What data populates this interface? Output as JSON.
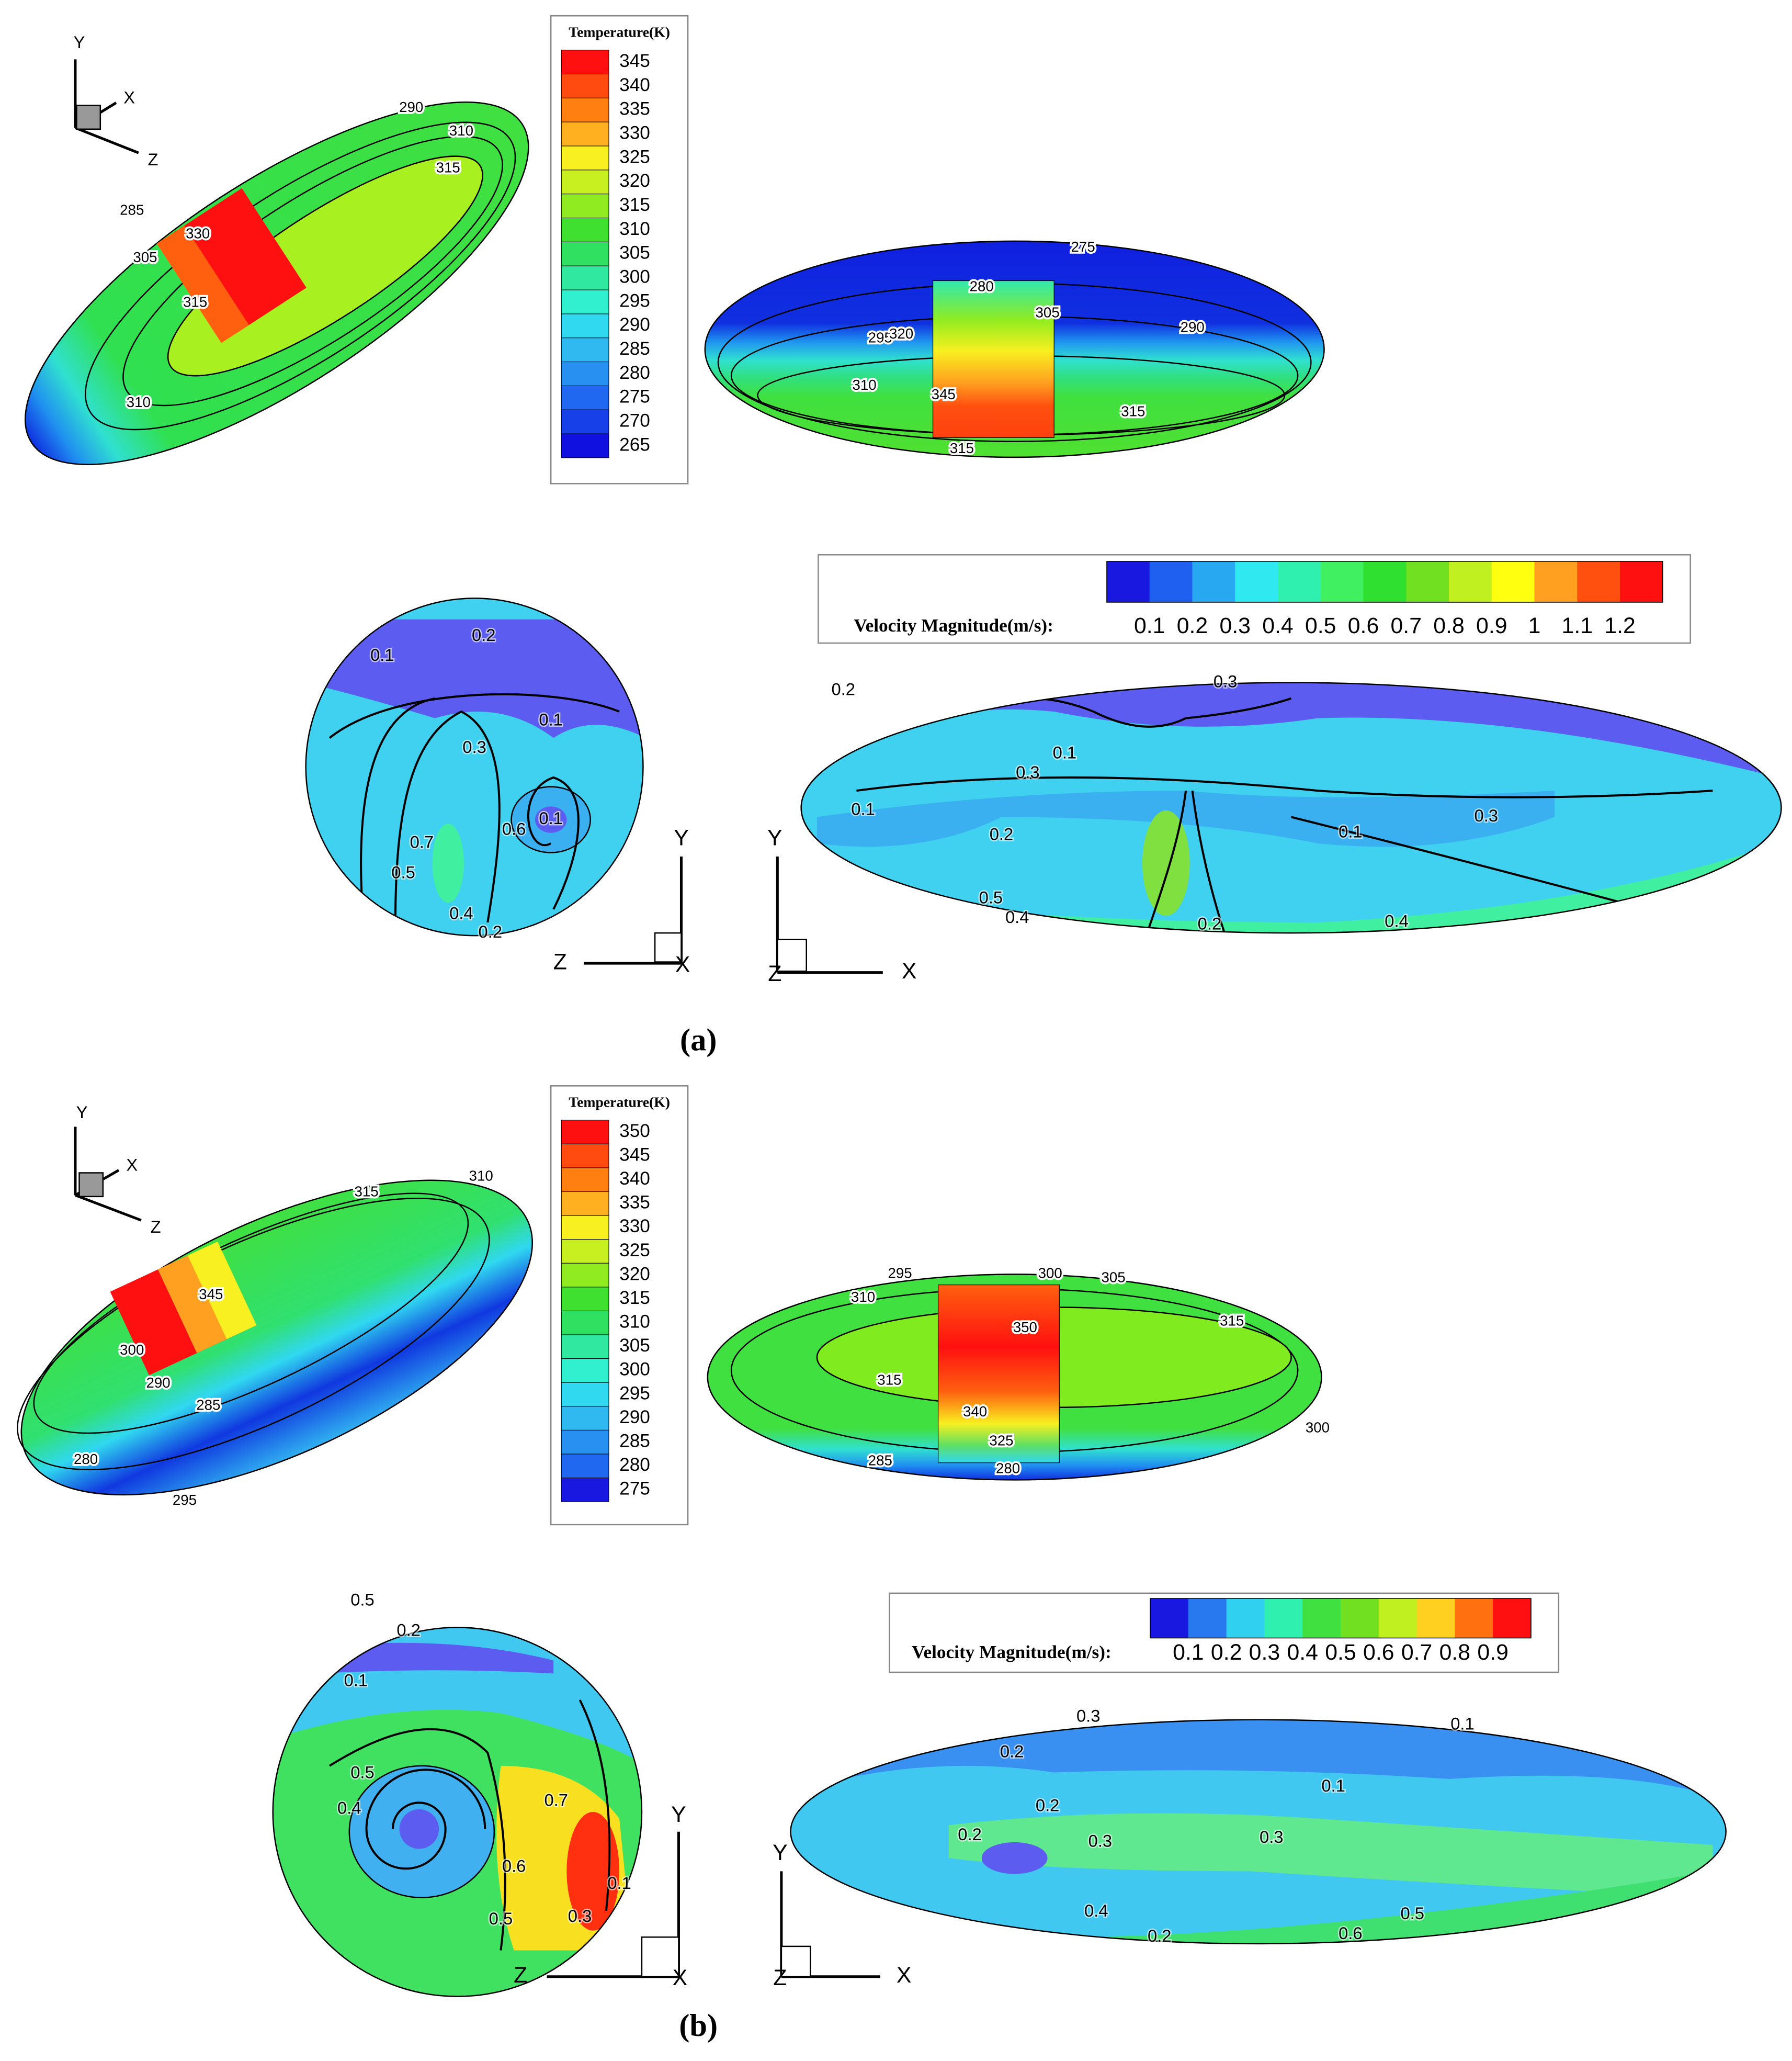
{
  "panels": [
    {
      "caption": "(a)",
      "temperature_legend": {
        "title": "Temperature(K)",
        "levels": [
          345,
          340,
          335,
          330,
          325,
          320,
          315,
          310,
          305,
          300,
          295,
          290,
          285,
          280,
          275,
          270,
          265
        ],
        "colors": [
          "#ff1010",
          "#ff4a10",
          "#ff8010",
          "#ffb020",
          "#f8f020",
          "#c8f020",
          "#90ec20",
          "#40e030",
          "#30e060",
          "#30e8a0",
          "#30f0d0",
          "#30d8f0",
          "#30b8f0",
          "#2890f0",
          "#2068f0",
          "#1840e8",
          "#1010e0"
        ]
      },
      "velocity_legend": {
        "title": "Velocity Magnitude(m/s):",
        "levels": [
          0.1,
          0.2,
          0.3,
          0.4,
          0.5,
          0.6,
          0.7,
          0.8,
          0.9,
          1,
          1.1,
          1.2
        ],
        "colors": [
          "#1818e0",
          "#2060f0",
          "#28a8f0",
          "#30e8f0",
          "#30f0b0",
          "#40f060",
          "#30e030",
          "#70e020",
          "#c0f020",
          "#ffff10",
          "#ffa020",
          "#ff5010",
          "#ff1010"
        ]
      },
      "axes": [
        {
          "labels": [
            "Y",
            "X",
            "Z"
          ]
        },
        {
          "labels": [
            "Y",
            "Z",
            "X"
          ]
        },
        {
          "labels": [
            "Y",
            "Z",
            "X"
          ]
        }
      ],
      "contour_labels": {
        "iso_view": [
          290,
          310,
          315,
          285,
          330,
          305,
          315,
          310
        ],
        "side_view": [
          275,
          280,
          305,
          295,
          320,
          290,
          310,
          345,
          315,
          315
        ],
        "cross_section": [
          0.2,
          0.1,
          0.1,
          0.3,
          0.6,
          0.1,
          0.7,
          0.5,
          0.4,
          0.2
        ],
        "longitudinal": [
          0.2,
          0.3,
          0.1,
          0.1,
          0.3,
          0.1,
          0.2,
          0.3,
          0.5,
          0.4,
          0.2,
          0.4
        ]
      }
    },
    {
      "caption": "(b)",
      "temperature_legend": {
        "title": "Temperature(K)",
        "levels": [
          350,
          345,
          340,
          335,
          330,
          325,
          320,
          315,
          310,
          305,
          300,
          295,
          290,
          285,
          280,
          275
        ],
        "colors": [
          "#ff1010",
          "#ff4a10",
          "#ff8010",
          "#ffb020",
          "#f8f020",
          "#c8f020",
          "#90ec20",
          "#40e030",
          "#30e060",
          "#30e8a0",
          "#30f0d0",
          "#30d8f0",
          "#30b8f0",
          "#2890f0",
          "#2068f0",
          "#1818e0"
        ]
      },
      "velocity_legend": {
        "title": "Velocity Magnitude(m/s):",
        "levels": [
          0.1,
          0.2,
          0.3,
          0.4,
          0.5,
          0.6,
          0.7,
          0.8,
          0.9
        ],
        "colors": [
          "#1818e0",
          "#2878f0",
          "#30d0f0",
          "#30f0b0",
          "#40e040",
          "#70e020",
          "#c0f020",
          "#ffd020",
          "#ff7010",
          "#ff1010"
        ]
      },
      "axes": [
        {
          "labels": [
            "Y",
            "X",
            "Z"
          ]
        },
        {
          "labels": [
            "Y",
            "Z",
            "X"
          ]
        },
        {
          "labels": [
            "Y",
            "Z",
            "X"
          ]
        }
      ],
      "contour_labels": {
        "iso_view": [
          315,
          310,
          345,
          300,
          290,
          285,
          280,
          295
        ],
        "side_view": [
          295,
          300,
          305,
          310,
          315,
          350,
          315,
          340,
          325,
          280,
          285,
          300
        ],
        "cross_section": [
          0.5,
          0.2,
          0.1,
          0.5,
          0.4,
          0.7,
          0.6,
          0.5,
          0.1,
          0.3
        ],
        "longitudinal": [
          0.3,
          0.1,
          0.2,
          0.2,
          0.1,
          0.2,
          0.3,
          0.3,
          0.4,
          0.5,
          0.2,
          0.6
        ]
      }
    }
  ]
}
